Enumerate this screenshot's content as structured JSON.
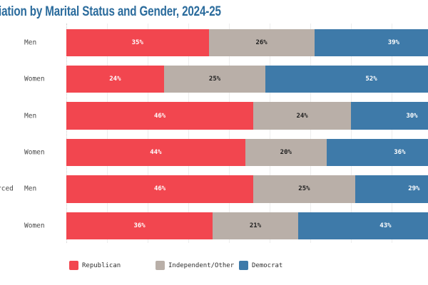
{
  "title_fragment": "iation by Marital Status and Gender, 2024-25",
  "left_axis": {
    "group_label_fragment": "rced",
    "group_label_fragment_row_index": 4
  },
  "colors": {
    "title": "#2A6B9C",
    "republican": "#F2464F",
    "independent_other": "#B9AFA8",
    "democrat": "#3E7AA9",
    "gridline": "#EDEDED",
    "axis_line": "#CCCCCC",
    "axis_label_text": "#4A4A4A",
    "legend_text": "#2F2F2F"
  },
  "chart_data": {
    "type": "bar",
    "stacked": true,
    "orientation": "horizontal",
    "title": "iation by Marital Status and Gender, 2024-25",
    "categories": [
      "Men",
      "Women",
      "Men",
      "Women",
      "Men",
      "Women"
    ],
    "group_fragments_visible": [
      "",
      "",
      "rced"
    ],
    "series": [
      {
        "name": "Republican",
        "color": "#F2464F",
        "text_color": "#FFFFFF",
        "values": [
          35,
          24,
          46,
          44,
          46,
          36
        ]
      },
      {
        "name": "Independent/Other",
        "color": "#B9AFA8",
        "text_color": "#1F1F1F",
        "values": [
          26,
          25,
          24,
          20,
          25,
          21
        ]
      },
      {
        "name": "Democrat",
        "color": "#3E7AA9",
        "text_color": "#FFFFFF",
        "values": [
          39,
          52,
          30,
          36,
          29,
          43
        ]
      }
    ],
    "value_suffix": "%",
    "xlim": [
      0,
      100
    ],
    "gridline_interval": 10,
    "grid": true,
    "legend_position": "bottom",
    "note": "right edge of plot cropped at ~89% of axis; left category group labels cropped"
  }
}
